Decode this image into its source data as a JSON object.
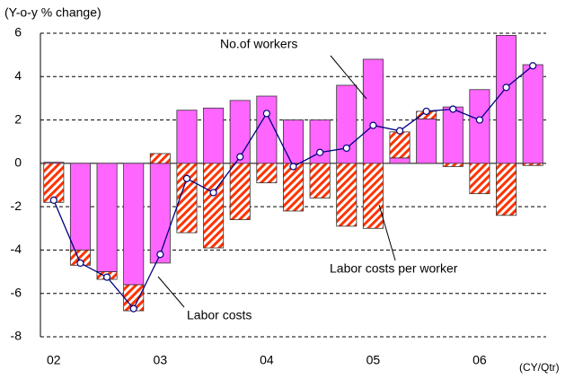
{
  "chart_data": {
    "type": "bar",
    "stacked": true,
    "y_label": "(Y-o-y % change)",
    "x_label": "(CY/Qtr)",
    "categories": [
      "02",
      null,
      null,
      null,
      "03",
      null,
      null,
      null,
      "04",
      null,
      null,
      null,
      "05",
      null,
      null,
      null,
      "06",
      null,
      null
    ],
    "series": [
      {
        "name": "No.of workers",
        "color": "#ff66ff",
        "values": [
          0.05,
          -4.0,
          -5.0,
          -5.6,
          -4.6,
          2.45,
          2.55,
          2.9,
          3.1,
          2.0,
          2.0,
          3.6,
          4.8,
          0.25,
          2.05,
          2.6,
          3.4,
          5.9,
          4.55
        ]
      },
      {
        "name": "Labor costs per worker",
        "color": "#ff3300",
        "pattern": "hatch",
        "values": [
          -1.8,
          -0.7,
          -0.35,
          -1.2,
          0.45,
          -3.2,
          -3.9,
          -2.6,
          -0.9,
          -2.2,
          -1.6,
          -2.9,
          -3.0,
          1.2,
          0.35,
          -0.15,
          -1.4,
          -2.4,
          -0.1
        ]
      },
      {
        "name": "Labor costs",
        "type": "line",
        "color": "#000080",
        "values": [
          -1.7,
          -4.6,
          -5.25,
          -6.7,
          -4.2,
          -0.7,
          -1.35,
          0.3,
          2.3,
          -0.15,
          0.5,
          0.7,
          1.75,
          1.5,
          2.4,
          2.5,
          2.0,
          3.5,
          4.5
        ]
      }
    ],
    "ylim": [
      -8,
      6
    ],
    "yticks": [
      -8,
      -6,
      -4,
      -2,
      0,
      2,
      4,
      6
    ],
    "grid": true
  }
}
